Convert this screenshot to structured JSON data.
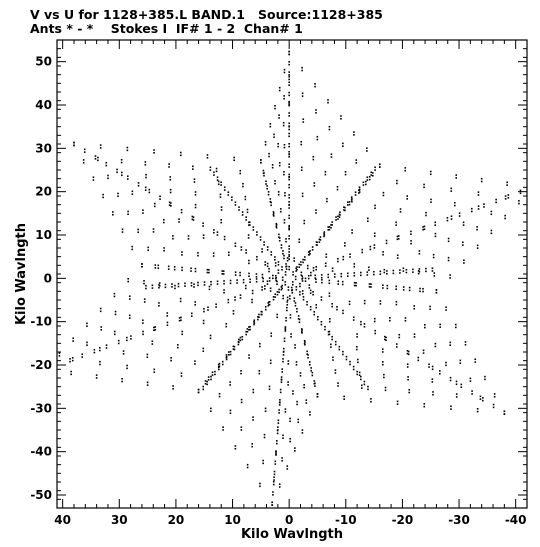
{
  "header": {
    "line1": "V vs U for 1128+385.L BAND.1   Source:1128+385",
    "line2": "Ants * - *    Stokes I  IF# 1 - 2  Chan# 1"
  },
  "chart_data": {
    "type": "scatter",
    "xlabel": "Kilo Wavlngth",
    "ylabel": "Kilo Wavlngth",
    "xlim": [
      41,
      -42
    ],
    "ylim": [
      -53,
      55
    ],
    "xticks": [
      40,
      30,
      20,
      10,
      0,
      -10,
      -20,
      -30,
      -40
    ],
    "yticks": [
      50,
      40,
      30,
      20,
      10,
      0,
      -10,
      -20,
      -30,
      -40,
      -50
    ],
    "grid": false,
    "arms": [
      {
        "u": 0.0,
        "v": 52.0
      },
      {
        "u": -16.0,
        "v": 26.0
      },
      {
        "u": -43.0,
        "v": 21.0
      },
      {
        "u": -26.0,
        "v": -3.0
      },
      {
        "u": -38.0,
        "v": -31.0
      },
      {
        "u": -5.0,
        "v": -27.0
      },
      {
        "u": 3.0,
        "v": -52.0
      },
      {
        "u": 16.0,
        "v": -26.0
      },
      {
        "u": 43.0,
        "v": -21.0
      },
      {
        "u": 26.0,
        "v": 3.0
      },
      {
        "u": 38.0,
        "v": 31.0
      },
      {
        "u": 5.0,
        "v": 27.0
      }
    ],
    "points_per_track": 3,
    "track_step": 1
  }
}
